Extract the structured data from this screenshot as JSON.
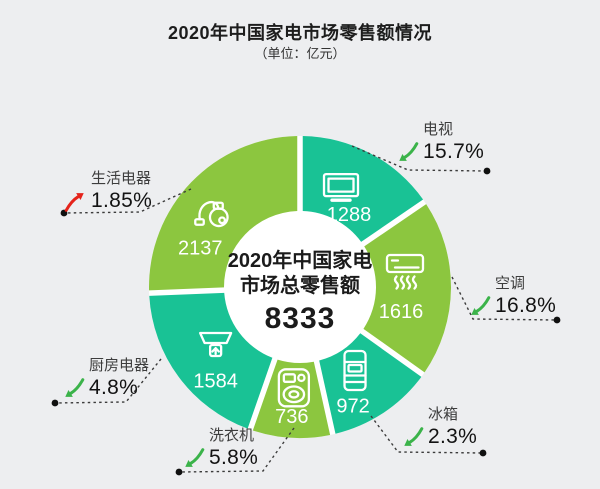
{
  "title": "2020年中国家电市场零售额情况",
  "subtitle": "（单位：亿元）",
  "center": {
    "line1": "2020年中国家电",
    "line2": "市场总零售额",
    "total": "8333"
  },
  "chart_data": {
    "type": "pie",
    "donut": true,
    "title": "2020年中国家电市场零售额情况",
    "unit": "亿元",
    "total": 8333,
    "center_label": [
      "2020年中国家电",
      "市场总零售额",
      "8333"
    ],
    "slices": [
      {
        "id": "tv",
        "name": "电视",
        "value": 1288,
        "change_pct": "15.7%",
        "trend": "down",
        "color": "#19c295",
        "icon": "tv-icon"
      },
      {
        "id": "ac",
        "name": "空调",
        "value": 1616,
        "change_pct": "16.8%",
        "trend": "down",
        "color": "#8cc63f",
        "icon": "air-conditioner-icon"
      },
      {
        "id": "fridge",
        "name": "冰箱",
        "value": 972,
        "change_pct": "2.3%",
        "trend": "down",
        "color": "#19c295",
        "icon": "fridge-icon"
      },
      {
        "id": "washer",
        "name": "洗衣机",
        "value": 736,
        "change_pct": "5.8%",
        "trend": "down",
        "color": "#8cc63f",
        "icon": "washing-machine-icon"
      },
      {
        "id": "kitchen",
        "name": "厨房电器",
        "value": 1584,
        "change_pct": "4.8%",
        "trend": "down",
        "color": "#19c295",
        "icon": "range-hood-icon"
      },
      {
        "id": "life",
        "name": "生活电器",
        "value": 2137,
        "change_pct": "1.85%",
        "trend": "up",
        "color": "#8cc63f",
        "icon": "vacuum-cleaner-icon"
      }
    ],
    "trend_colors": {
      "up": "#e5231b",
      "down": "#3bb34a"
    },
    "layout_hint": "donut starts at top, clockwise, white gaps between slices, dashed leader lines to labels with end dots"
  }
}
